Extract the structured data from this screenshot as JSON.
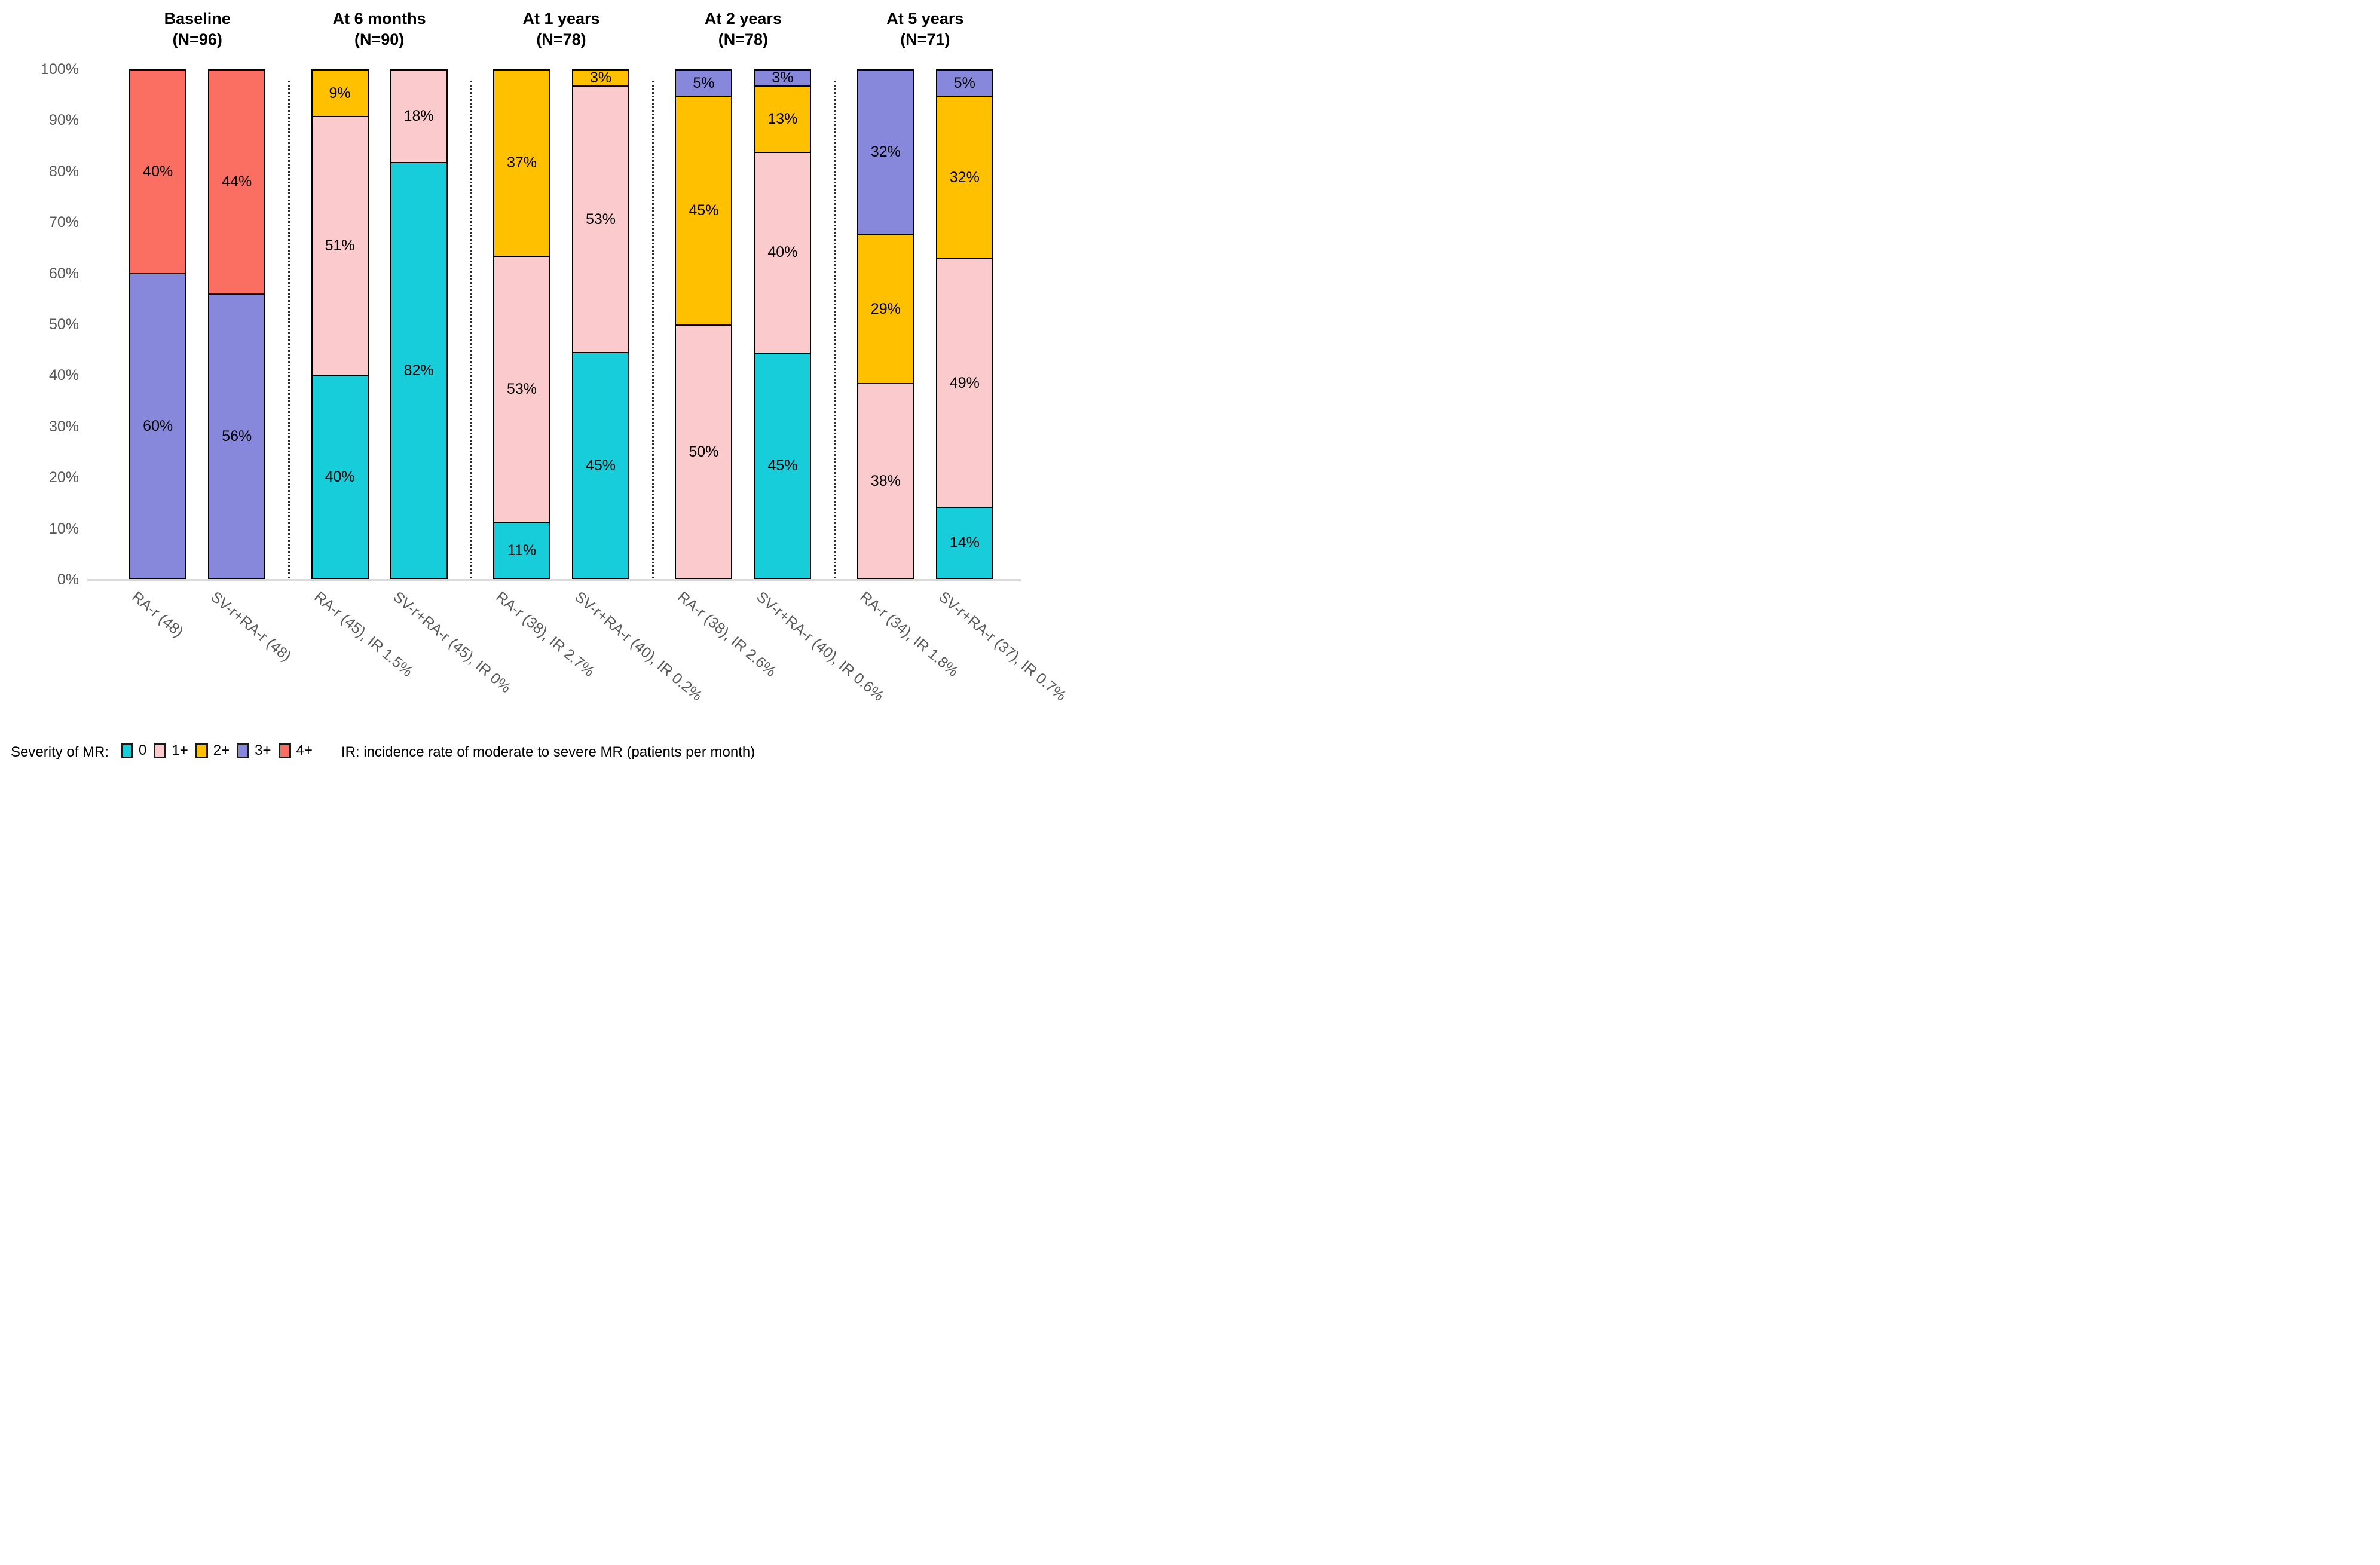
{
  "chart_data": {
    "type": "bar",
    "stacked": true,
    "percent_axis": true,
    "ylim": [
      0,
      100
    ],
    "grid": false,
    "y_ticks": [
      "100%",
      "90%",
      "80%",
      "70%",
      "60%",
      "50%",
      "40%",
      "30%",
      "20%",
      "10%",
      "0%"
    ],
    "severity_order": [
      "0",
      "1+",
      "2+",
      "3+",
      "4+"
    ],
    "colors": {
      "0": "#17CDDA",
      "1+": "#FACACC",
      "2+": "#FFC000",
      "3+": "#8787DB",
      "4+": "#FB6E62"
    },
    "groups": [
      {
        "header": "Baseline",
        "n_label": "(N=96)",
        "bars": [
          {
            "label": "RA-r (48)",
            "segments": [
              {
                "severity": "3+",
                "value": 60
              },
              {
                "severity": "4+",
                "value": 40
              }
            ]
          },
          {
            "label": "SV-r+RA-r (48)",
            "segments": [
              {
                "severity": "3+",
                "value": 56
              },
              {
                "severity": "4+",
                "value": 44
              }
            ]
          }
        ]
      },
      {
        "header": "At 6 months",
        "n_label": "(N=90)",
        "bars": [
          {
            "label": "RA-r (45), IR 1.5%",
            "segments": [
              {
                "severity": "0",
                "value": 40
              },
              {
                "severity": "1+",
                "value": 51
              },
              {
                "severity": "2+",
                "value": 9
              }
            ]
          },
          {
            "label": "SV-r+RA-r (45), IR 0%",
            "segments": [
              {
                "severity": "0",
                "value": 82
              },
              {
                "severity": "1+",
                "value": 18
              }
            ]
          }
        ]
      },
      {
        "header": "At 1 years",
        "n_label": "(N=78)",
        "bars": [
          {
            "label": "RA-r (38), IR 2.7%",
            "segments": [
              {
                "severity": "0",
                "value": 11
              },
              {
                "severity": "1+",
                "value": 53
              },
              {
                "severity": "2+",
                "value": 37
              }
            ]
          },
          {
            "label": "SV-r+RA-r (40), IR 0.2%",
            "segments": [
              {
                "severity": "0",
                "value": 45
              },
              {
                "severity": "1+",
                "value": 53
              },
              {
                "severity": "2+",
                "value": 3
              }
            ]
          }
        ]
      },
      {
        "header": "At 2 years",
        "n_label": "(N=78)",
        "bars": [
          {
            "label": "RA-r (38), IR 2.6%",
            "segments": [
              {
                "severity": "1+",
                "value": 50
              },
              {
                "severity": "2+",
                "value": 45
              },
              {
                "severity": "3+",
                "value": 5
              }
            ]
          },
          {
            "label": "SV-r+RA-r (40), IR 0.6%",
            "segments": [
              {
                "severity": "0",
                "value": 45
              },
              {
                "severity": "1+",
                "value": 40
              },
              {
                "severity": "2+",
                "value": 13
              },
              {
                "severity": "3+",
                "value": 3
              }
            ]
          }
        ]
      },
      {
        "header": "At 5 years",
        "n_label": "(N=71)",
        "bars": [
          {
            "label": "RA-r (34), IR 1.8%",
            "segments": [
              {
                "severity": "1+",
                "value": 38
              },
              {
                "severity": "2+",
                "value": 29
              },
              {
                "severity": "3+",
                "value": 32
              }
            ]
          },
          {
            "label": "SV-r+RA-r (37), IR 0.7%",
            "segments": [
              {
                "severity": "0",
                "value": 14
              },
              {
                "severity": "1+",
                "value": 49
              },
              {
                "severity": "2+",
                "value": 32
              },
              {
                "severity": "3+",
                "value": 5
              }
            ]
          }
        ]
      }
    ]
  },
  "legend": {
    "title": "Severity of MR:",
    "items": [
      {
        "label": "0",
        "severity": "0"
      },
      {
        "label": "1+",
        "severity": "1+"
      },
      {
        "label": "2+",
        "severity": "2+"
      },
      {
        "label": "3+",
        "severity": "3+"
      },
      {
        "label": "4+",
        "severity": "4+"
      }
    ],
    "note": "IR: incidence rate of moderate to severe MR (patients per month)"
  }
}
